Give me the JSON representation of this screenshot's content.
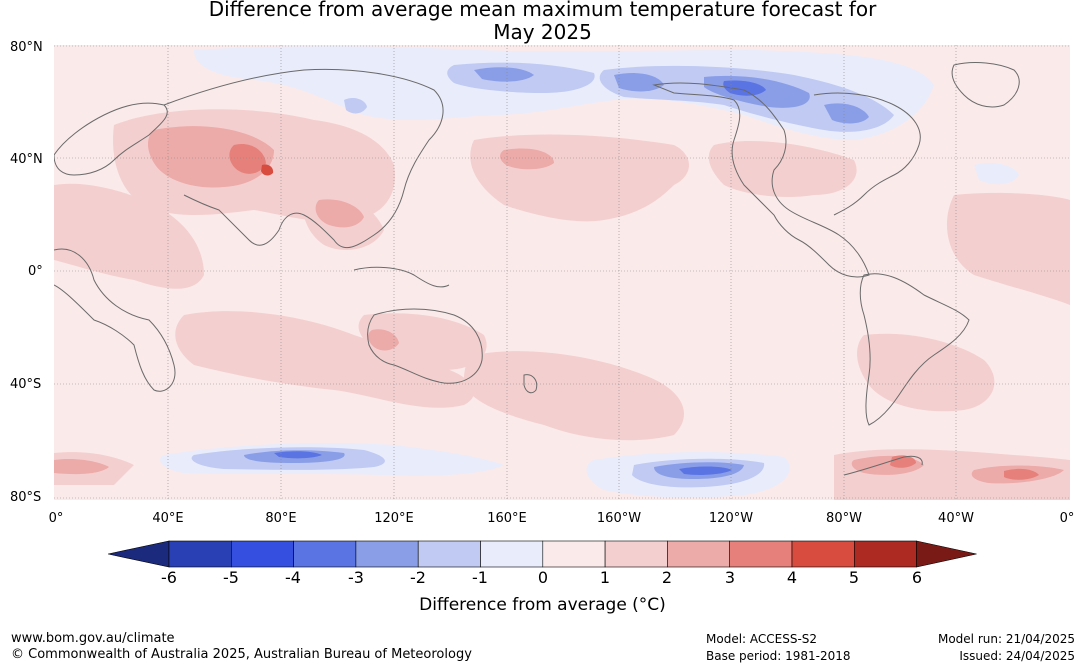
{
  "title": {
    "line1": "Difference from average mean maximum temperature forecast for",
    "line2": "May 2025"
  },
  "lat_labels": [
    "80°N",
    "40°N",
    "0°",
    "40°S",
    "80°S"
  ],
  "lon_labels": [
    "0°",
    "40°E",
    "80°E",
    "120°E",
    "160°E",
    "160°W",
    "120°W",
    "80°W",
    "40°W",
    "0°"
  ],
  "colorbar": {
    "label": "Difference from average (°C)",
    "ticks": [
      "-6",
      "-5",
      "-4",
      "-3",
      "-2",
      "-1",
      "0",
      "1",
      "2",
      "3",
      "4",
      "5",
      "6"
    ],
    "colors": [
      "#1b2a7c",
      "#2840b4",
      "#3550e0",
      "#5a74e4",
      "#8a9ee8",
      "#c0caf2",
      "#e8ecfb",
      "#fbeaea",
      "#f4cfcf",
      "#ecaaa8",
      "#e5807a",
      "#d84c40",
      "#ad2a22",
      "#7a1a16"
    ]
  },
  "map_colors": {
    "background": "#fbeaea",
    "warm1": "#f4cfcf",
    "warm2": "#ecaaa8",
    "warm3": "#e5807a",
    "warm4": "#d84c40",
    "cool1": "#e8ecfb",
    "cool2": "#c0caf2",
    "cool3": "#8a9ee8",
    "cool4": "#5a74e4",
    "coast": "#6a6a6a"
  },
  "footer": {
    "website": "www.bom.gov.au/climate",
    "copyright": "© Commonwealth of Australia 2025, Australian Bureau of Meteorology",
    "model": "Model: ACCESS-S2",
    "base_period": "Base period: 1981-2018",
    "model_run": "Model run: 21/04/2025",
    "issued": "Issued: 24/04/2025"
  }
}
